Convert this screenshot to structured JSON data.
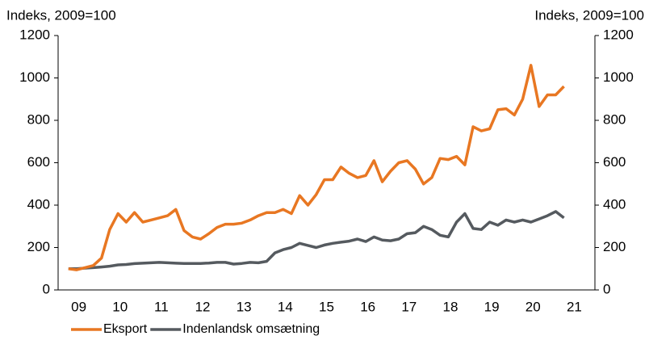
{
  "chart_data": {
    "type": "line",
    "y_label": "Indeks, 2009=100",
    "y2_label": "Indeks, 2009=100",
    "x": [
      2009.25,
      2009.45,
      2009.65,
      2009.85,
      2010.05,
      2010.25,
      2010.45,
      2010.65,
      2010.85,
      2011.05,
      2011.25,
      2011.45,
      2011.65,
      2011.85,
      2012.05,
      2012.25,
      2012.45,
      2012.65,
      2012.85,
      2013.05,
      2013.25,
      2013.45,
      2013.65,
      2013.85,
      2014.05,
      2014.25,
      2014.45,
      2014.65,
      2014.85,
      2015.05,
      2015.25,
      2015.45,
      2015.65,
      2015.85,
      2016.05,
      2016.25,
      2016.45,
      2016.65,
      2016.85,
      2017.05,
      2017.25,
      2017.45,
      2017.65,
      2017.85,
      2018.05,
      2018.25,
      2018.45,
      2018.65,
      2018.85,
      2019.05,
      2019.25,
      2019.45,
      2019.65,
      2019.85,
      2020.05,
      2020.25,
      2020.45,
      2020.65,
      2020.85,
      2021.05,
      2021.25
    ],
    "series": [
      {
        "name": "Eksport",
        "color": "#e87722",
        "values": [
          100,
          95,
          105,
          115,
          150,
          285,
          360,
          320,
          365,
          320,
          330,
          340,
          350,
          380,
          280,
          250,
          240,
          265,
          295,
          310,
          310,
          315,
          330,
          350,
          365,
          365,
          380,
          360,
          445,
          400,
          450,
          520,
          520,
          580,
          550,
          530,
          540,
          610,
          510,
          560,
          600,
          610,
          570,
          500,
          530,
          620,
          615,
          630,
          590,
          770,
          750,
          760,
          850,
          855,
          825,
          900,
          1060,
          865,
          920,
          920,
          960
        ]
      },
      {
        "name": "Indenlandsk omsætning",
        "color": "#555a5f",
        "axis": "y2",
        "values": [
          100,
          100,
          103,
          105,
          108,
          112,
          118,
          120,
          124,
          126,
          128,
          130,
          128,
          126,
          125,
          125,
          125,
          127,
          130,
          130,
          122,
          125,
          130,
          128,
          135,
          175,
          190,
          200,
          220,
          210,
          200,
          212,
          220,
          225,
          230,
          240,
          228,
          250,
          235,
          232,
          240,
          265,
          270,
          300,
          285,
          258,
          250,
          320,
          360,
          290,
          285,
          320,
          305,
          330,
          320,
          330,
          320,
          335,
          350,
          370,
          340
        ]
      }
    ],
    "xlim": [
      2009,
      2022
    ],
    "xticks": [
      {
        "value": 2009.5,
        "label": "09"
      },
      {
        "value": 2010.5,
        "label": "10"
      },
      {
        "value": 2011.5,
        "label": "11"
      },
      {
        "value": 2012.5,
        "label": "12"
      },
      {
        "value": 2013.5,
        "label": "13"
      },
      {
        "value": 2014.5,
        "label": "14"
      },
      {
        "value": 2015.5,
        "label": "15"
      },
      {
        "value": 2016.5,
        "label": "16"
      },
      {
        "value": 2017.5,
        "label": "17"
      },
      {
        "value": 2018.5,
        "label": "18"
      },
      {
        "value": 2019.5,
        "label": "19"
      },
      {
        "value": 2020.5,
        "label": "20"
      },
      {
        "value": 2021.5,
        "label": "21"
      }
    ],
    "ylim": [
      0,
      1200
    ],
    "yticks": [
      0,
      200,
      400,
      600,
      800,
      1000,
      1200
    ],
    "y2lim": [
      0,
      1200
    ],
    "y2ticks": [
      0,
      200,
      400,
      600,
      800,
      1000,
      1200
    ],
    "legend": "bottom-left"
  }
}
